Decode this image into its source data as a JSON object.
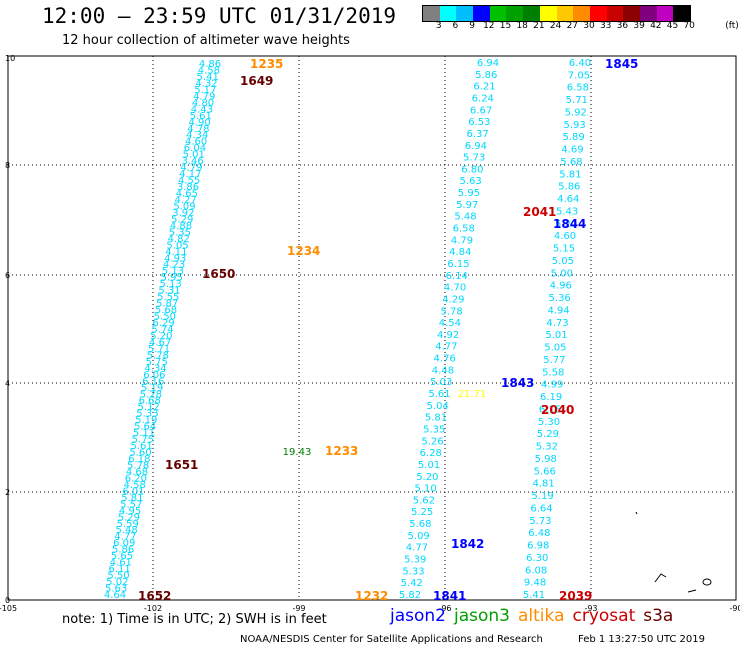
{
  "header": {
    "title": "12:00 – 23:59 UTC 01/31/2019",
    "subtitle": "12 hour collection of altimeter wave heights"
  },
  "colorbar": {
    "unit": "(ft)",
    "colors": [
      "#808080",
      "#00ffff",
      "#00bfff",
      "#0000ff",
      "#00c000",
      "#00a000",
      "#008000",
      "#ffff00",
      "#ffc800",
      "#ff8c00",
      "#ff0000",
      "#c80000",
      "#8b0000",
      "#800080",
      "#c000c0",
      "#000000"
    ],
    "labels": [
      "3",
      "6",
      "9",
      "12",
      "15",
      "18",
      "21",
      "24",
      "27",
      "30",
      "33",
      "36",
      "39",
      "42",
      "45",
      "70"
    ]
  },
  "axes": {
    "x_ticks": [
      "-105",
      "-102",
      "-99",
      "-96",
      "-93",
      "-90"
    ],
    "y_ticks": [
      "0",
      "2",
      "4",
      "6",
      "8",
      "10"
    ]
  },
  "colors": {
    "swh_value": "#00d8ff",
    "jason2": "#0000ff",
    "jason3": "#00a000",
    "altika": "#ff8c00",
    "cryosat": "#cc0000",
    "s3a": "#660000",
    "high_swh": "#ffff00",
    "mid_swh": "#008000"
  },
  "tracks": {
    "track1_values": [
      "4.86",
      "4.58",
      "5.41",
      "4.32",
      "5.17",
      "4.79",
      "4.80",
      "4.43",
      "5.61",
      "4.90",
      "4.78",
      "4.34",
      "4.60",
      "6.04",
      "5.01",
      "3.46",
      "4.79",
      "4.17",
      "4.55",
      "3.86",
      "4.65",
      "4.27",
      "5.09",
      "3.92",
      "5.29",
      "4.88",
      "5.35",
      "4.82",
      "5.05",
      "4.11",
      "4.93",
      "4.23",
      "5.13",
      "5.95",
      "5.13",
      "5.31",
      "5.55",
      "5.87",
      "5.68",
      "5.50",
      "6.29",
      "5.74",
      "5.20",
      "4.67",
      "5.71",
      "5.78",
      "5.75",
      "4.34",
      "6.06",
      "6.16",
      "5.19",
      "5.28",
      "6.68",
      "5.12",
      "5.33",
      "5.19",
      "5.64",
      "5.11",
      "5.75",
      "5.61",
      "5.60",
      "6.18",
      "5.78",
      "4.68",
      "6.20",
      "4.58",
      "6.01",
      "5.81",
      "5.57",
      "4.95",
      "5.29",
      "5.59",
      "5.48",
      "4.77",
      "6.09",
      "5.86",
      "5.65",
      "4.61",
      "6.11",
      "5.50",
      "5.02",
      "5.63",
      "4.64"
    ],
    "track2_values": [
      "6.94",
      "5.86",
      "6.21",
      "6.24",
      "6.67",
      "6.53",
      "6.37",
      "6.94",
      "5.73",
      "6.80",
      "5.63",
      "5.95",
      "5.97",
      "5.48",
      "6.58",
      "4.79",
      "4.84",
      "6.15",
      "6.14",
      "4.70",
      "4.29",
      "5.78",
      "4.54",
      "4.92",
      "4.77",
      "4.76",
      "4.48",
      "5.03",
      "5.61",
      "5.04",
      "5.81",
      "5.35",
      "5.26",
      "6.28",
      "5.01",
      "5.20",
      "5.10",
      "5.62",
      "5.25",
      "5.68",
      "5.09",
      "4.77",
      "5.39",
      "5.33",
      "5.42",
      "5.82"
    ],
    "track3_values": [
      "6.40",
      "7.05",
      "6.58",
      "5.71",
      "5.92",
      "5.93",
      "5.89",
      "4.69",
      "5.68",
      "5.81",
      "5.86",
      "4.64",
      "5.43",
      "5.20",
      "4.60",
      "5.15",
      "5.05",
      "5.00",
      "4.96",
      "5.36",
      "4.94",
      "4.73",
      "5.01",
      "5.05",
      "5.77",
      "5.58",
      "4.99",
      "6.19",
      "6.15",
      "5.30",
      "5.29",
      "5.32",
      "5.98",
      "5.66",
      "4.81",
      "5.19",
      "6.64",
      "5.73",
      "6.48",
      "6.98",
      "6.30",
      "6.08",
      "9.48",
      "5.41"
    ],
    "special_values": [
      "19.43",
      "21.71"
    ],
    "labels": [
      {
        "text": "1235",
        "sat": "altika"
      },
      {
        "text": "1649",
        "sat": "s3a"
      },
      {
        "text": "1234",
        "sat": "altika"
      },
      {
        "text": "1650",
        "sat": "s3a"
      },
      {
        "text": "1233",
        "sat": "altika"
      },
      {
        "text": "1651",
        "sat": "s3a"
      },
      {
        "text": "1652",
        "sat": "s3a"
      },
      {
        "text": "1232",
        "sat": "altika"
      },
      {
        "text": "1845",
        "sat": "jason2"
      },
      {
        "text": "1844",
        "sat": "jason2"
      },
      {
        "text": "1843",
        "sat": "jason2"
      },
      {
        "text": "1842",
        "sat": "jason2"
      },
      {
        "text": "1841",
        "sat": "jason2"
      },
      {
        "text": "2041",
        "sat": "cryosat"
      },
      {
        "text": "2040",
        "sat": "cryosat"
      },
      {
        "text": "2039",
        "sat": "cryosat"
      }
    ]
  },
  "note": "note:  1) Time is in UTC;  2) SWH is in feet",
  "legend": [
    {
      "label": "jason2",
      "color": "#0000ff"
    },
    {
      "label": "jason3",
      "color": "#00a000"
    },
    {
      "label": "altika",
      "color": "#ff8c00"
    },
    {
      "label": "cryosat",
      "color": "#cc0000"
    },
    {
      "label": "s3a",
      "color": "#660000"
    }
  ],
  "footer": "NOAA/NESDIS Center for Satellite Applications and Research",
  "footer_time": "Feb  1 13:27:50 UTC 2019"
}
